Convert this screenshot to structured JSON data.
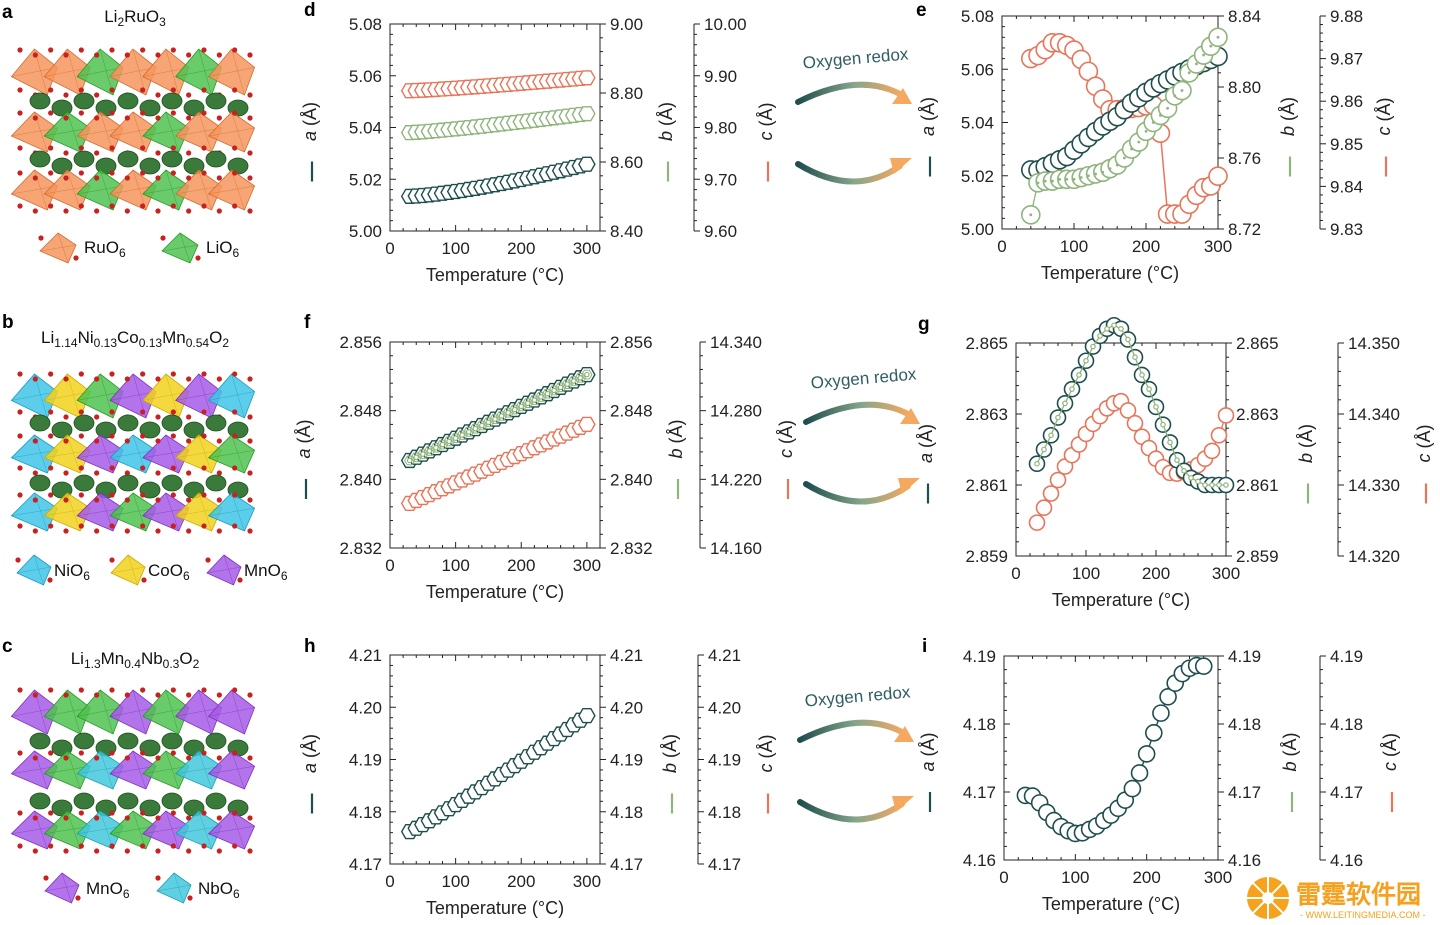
{
  "colors": {
    "a": "#1f4e4e",
    "b": "#8fb47c",
    "c": "#e8755a",
    "ru": "#f6955c",
    "li": "#4fc24f",
    "ni": "#3fc4e6",
    "co": "#f2d21c",
    "mn": "#a65ae6",
    "nb": "#43c8dc",
    "sphere": "#3a7a3a",
    "oxygen": "#c92020"
  },
  "panel_letters": {
    "a": "a",
    "b": "b",
    "c": "c",
    "d": "d",
    "e": "e",
    "f": "f",
    "g": "g",
    "h": "h",
    "i": "i"
  },
  "structures": {
    "a": {
      "formula": {
        "parts": [
          {
            "t": "Li"
          },
          {
            "t": "2",
            "sub": true
          },
          {
            "t": "RuO"
          },
          {
            "t": "3",
            "sub": true
          }
        ]
      },
      "legend": [
        {
          "name": "RuO",
          "sub": "6",
          "color_key": "ru"
        },
        {
          "name": "LiO",
          "sub": "6",
          "color_key": "li"
        }
      ]
    },
    "b": {
      "formula": {
        "parts": [
          {
            "t": "Li"
          },
          {
            "t": "1.14",
            "sub": true
          },
          {
            "t": "Ni"
          },
          {
            "t": "0.13",
            "sub": true
          },
          {
            "t": "Co"
          },
          {
            "t": "0.13",
            "sub": true
          },
          {
            "t": "Mn"
          },
          {
            "t": "0.54",
            "sub": true
          },
          {
            "t": "O"
          },
          {
            "t": "2",
            "sub": true
          }
        ]
      },
      "legend": [
        {
          "name": "NiO",
          "sub": "6",
          "color_key": "ni"
        },
        {
          "name": "CoO",
          "sub": "6",
          "color_key": "co"
        },
        {
          "name": "MnO",
          "sub": "6",
          "color_key": "mn"
        }
      ]
    },
    "c": {
      "formula": {
        "parts": [
          {
            "t": "Li"
          },
          {
            "t": "1.3",
            "sub": true
          },
          {
            "t": "Mn"
          },
          {
            "t": "0.4",
            "sub": true
          },
          {
            "t": "Nb"
          },
          {
            "t": "0.3",
            "sub": true
          },
          {
            "t": "O"
          },
          {
            "t": "2",
            "sub": true
          }
        ]
      },
      "legend": [
        {
          "name": "MnO",
          "sub": "6",
          "color_key": "mn"
        },
        {
          "name": "NbO",
          "sub": "6",
          "color_key": "nb"
        }
      ]
    }
  },
  "redox_label": "Oxygen redox",
  "axis_titles": {
    "x": "Temperature (°C)",
    "a_var": "a",
    "b_var": "b",
    "c_var": "c",
    "unit": " (Å)"
  },
  "watermark": {
    "title": "雷霆软件园",
    "url": "- WWW.LEITINGMEDIA.COM -"
  },
  "chart_data": [
    {
      "panel": "d",
      "type": "scatter",
      "marker": "hexagon",
      "xlabel": "Temperature (°C)",
      "xlim": [
        0,
        320
      ],
      "xticks": [
        0,
        100,
        200,
        300
      ],
      "axes": {
        "a": {
          "ylim": [
            5.0,
            5.08
          ],
          "ticks": [
            "5.00",
            "5.02",
            "5.04",
            "5.06",
            "5.08"
          ]
        },
        "b": {
          "ylim": [
            8.4,
            9.0
          ],
          "ticks": [
            "8.40",
            "8.60",
            "8.80",
            "9.00"
          ]
        },
        "c": {
          "ylim": [
            9.6,
            10.0
          ],
          "ticks": [
            "9.60",
            "9.70",
            "9.80",
            "9.90",
            "10.00"
          ]
        }
      },
      "series": [
        {
          "name": "a",
          "axis": "a",
          "x_start": 30,
          "x_end": 300,
          "n": 28,
          "y_start": 5.0134,
          "y_end": 5.0258,
          "curve": 1.4
        },
        {
          "name": "b",
          "axis": "b",
          "x_start": 30,
          "x_end": 300,
          "n": 28,
          "y_start": 8.685,
          "y_end": 8.74,
          "curve": 1.2
        },
        {
          "name": "c",
          "axis": "c",
          "x_start": 30,
          "x_end": 300,
          "n": 28,
          "y_start": 9.871,
          "y_end": 9.896,
          "curve": 1.2
        }
      ]
    },
    {
      "panel": "e",
      "type": "scatter",
      "marker": "circle",
      "xlabel": "Temperature (°C)",
      "xlim": [
        0,
        300
      ],
      "xticks": [
        0,
        100,
        200,
        300
      ],
      "axes": {
        "a": {
          "ylim": [
            5.0,
            5.08
          ],
          "ticks": [
            "5.00",
            "5.02",
            "5.04",
            "5.06",
            "5.08"
          ]
        },
        "b": {
          "ylim": [
            8.72,
            8.84
          ],
          "ticks": [
            "8.72",
            "8.76",
            "8.80",
            "8.84"
          ]
        },
        "c": {
          "ylim": [
            9.83,
            9.88
          ],
          "ticks": [
            "9.83",
            "9.84",
            "9.85",
            "9.86",
            "9.87",
            "9.88"
          ]
        }
      },
      "series": [
        {
          "name": "a",
          "axis": "a",
          "x": [
            40,
            50,
            60,
            70,
            80,
            90,
            100,
            110,
            120,
            130,
            140,
            150,
            160,
            170,
            180,
            190,
            200,
            210,
            220,
            230,
            240,
            250,
            260,
            270,
            280,
            290,
            300
          ],
          "y": [
            5.0222,
            5.0222,
            5.0234,
            5.0247,
            5.026,
            5.0272,
            5.0296,
            5.032,
            5.0344,
            5.0366,
            5.0387,
            5.0405,
            5.0422,
            5.0448,
            5.0473,
            5.0493,
            5.0513,
            5.053,
            5.0546,
            5.056,
            5.0575,
            5.0588,
            5.0601,
            5.0613,
            5.0625,
            5.0637,
            5.0648
          ]
        },
        {
          "name": "b",
          "axis": "b",
          "x": [
            40,
            50,
            60,
            70,
            80,
            90,
            100,
            110,
            120,
            130,
            140,
            150,
            160,
            170,
            180,
            190,
            200,
            210,
            220,
            230,
            240,
            250,
            260,
            270,
            280,
            290,
            300
          ],
          "y": [
            8.728,
            8.746,
            8.747,
            8.747,
            8.748,
            8.748,
            8.748,
            8.749,
            8.75,
            8.751,
            8.752,
            8.754,
            8.756,
            8.76,
            8.765,
            8.769,
            8.775,
            8.78,
            8.784,
            8.788,
            8.795,
            8.798,
            8.808,
            8.813,
            8.818,
            8.823,
            8.828
          ]
        },
        {
          "name": "c",
          "axis": "c",
          "x": [
            40,
            50,
            60,
            70,
            80,
            90,
            100,
            110,
            120,
            130,
            140,
            150,
            160,
            170,
            180,
            190,
            200,
            210,
            220,
            230,
            240,
            250,
            260,
            270,
            280,
            290,
            300
          ],
          "y": [
            9.87,
            9.8707,
            9.8721,
            9.8737,
            9.8737,
            9.8731,
            9.872,
            9.8698,
            9.867,
            9.8635,
            9.8605,
            9.858,
            9.858,
            9.8583,
            9.8583,
            9.8585,
            9.8589,
            9.8591,
            9.8525,
            9.8335,
            9.8335,
            9.8335,
            9.8358,
            9.8379,
            9.8397,
            9.8401,
            9.8424
          ]
        }
      ]
    },
    {
      "panel": "f",
      "type": "scatter",
      "marker": "hexagon",
      "xlabel": "Temperature (°C)",
      "xlim": [
        0,
        320
      ],
      "xticks": [
        0,
        100,
        200,
        300
      ],
      "axes": {
        "a": {
          "ylim": [
            2.832,
            2.856
          ],
          "ticks": [
            "2.832",
            "2.840",
            "2.848",
            "2.856"
          ]
        },
        "b": {
          "ylim": [
            2.832,
            2.856
          ],
          "ticks": [
            "2.832",
            "2.840",
            "2.848",
            "2.856"
          ]
        },
        "c": {
          "ylim": [
            14.16,
            14.34
          ],
          "ticks": [
            "14.160",
            "14.220",
            "14.280",
            "14.340"
          ]
        }
      },
      "series": [
        {
          "name": "a",
          "axis": "a",
          "x_start": 30,
          "x_end": 300,
          "n": 28,
          "y_start": 2.8422,
          "y_end": 2.8522,
          "curve": 1.0
        },
        {
          "name": "b",
          "axis": "b",
          "x_start": 30,
          "x_end": 300,
          "n": 28,
          "y_start": 2.8422,
          "y_end": 2.8522,
          "curve": 1.0,
          "inner": true
        },
        {
          "name": "c",
          "axis": "c",
          "x_start": 30,
          "x_end": 300,
          "n": 28,
          "y_start": 14.199,
          "y_end": 14.268,
          "curve": 1.0
        }
      ]
    },
    {
      "panel": "g",
      "type": "scatter",
      "marker": "circle",
      "xlabel": "Temperature (°C)",
      "xlim": [
        0,
        300
      ],
      "xticks": [
        0,
        100,
        200,
        300
      ],
      "axes": {
        "a": {
          "ylim": [
            2.859,
            2.865
          ],
          "ticks": [
            "2.859",
            "2.861",
            "2.863",
            "2.865"
          ]
        },
        "b": {
          "ylim": [
            2.859,
            2.865
          ],
          "ticks": [
            "2.859",
            "2.861",
            "2.863",
            "2.865"
          ]
        },
        "c": {
          "ylim": [
            14.32,
            14.35
          ],
          "ticks": [
            "14.320",
            "14.330",
            "14.340",
            "14.350"
          ]
        }
      },
      "series": [
        {
          "name": "a",
          "axis": "a",
          "x": [
            30,
            40,
            50,
            60,
            70,
            80,
            90,
            100,
            110,
            120,
            130,
            140,
            150,
            160,
            170,
            180,
            190,
            200,
            210,
            220,
            230,
            240,
            250,
            260,
            270,
            280,
            290,
            300
          ],
          "y": [
            2.8616,
            2.862,
            2.8624,
            2.8629,
            2.8633,
            2.8637,
            2.8641,
            2.8645,
            2.8649,
            2.8652,
            2.8654,
            2.8655,
            2.8654,
            2.8651,
            2.8646,
            2.8641,
            2.8637,
            2.8632,
            2.8627,
            2.8622,
            2.8617,
            2.8614,
            2.8612,
            2.8611,
            2.861,
            2.861,
            2.861,
            2.861
          ]
        },
        {
          "name": "b",
          "axis": "b",
          "x": [
            30,
            40,
            50,
            60,
            70,
            80,
            90,
            100,
            110,
            120,
            130,
            140,
            150,
            160,
            170,
            180,
            190,
            200,
            210,
            220,
            230,
            240,
            250,
            260,
            270,
            280,
            290,
            300
          ],
          "y": [
            2.8616,
            2.862,
            2.8624,
            2.8629,
            2.8633,
            2.8637,
            2.8641,
            2.8645,
            2.8649,
            2.8652,
            2.8654,
            2.8655,
            2.8654,
            2.8651,
            2.8646,
            2.8641,
            2.8637,
            2.8632,
            2.8627,
            2.8622,
            2.8617,
            2.8614,
            2.8612,
            2.8611,
            2.861,
            2.861,
            2.861,
            2.861
          ],
          "inner": true
        },
        {
          "name": "c",
          "axis": "c",
          "x": [
            30,
            40,
            50,
            60,
            70,
            80,
            90,
            100,
            110,
            120,
            130,
            140,
            150,
            160,
            170,
            180,
            190,
            200,
            210,
            220,
            230,
            240,
            250,
            260,
            270,
            280,
            290,
            300
          ],
          "y": [
            14.3247,
            14.3268,
            14.3288,
            14.3307,
            14.3326,
            14.3342,
            14.3357,
            14.3372,
            14.3386,
            14.3397,
            14.3408,
            14.3415,
            14.3418,
            14.3405,
            14.3387,
            14.3368,
            14.3352,
            14.3337,
            14.3325,
            14.3317,
            14.3316,
            14.3318,
            14.3322,
            14.3328,
            14.3337,
            14.3348,
            14.337,
            14.3398
          ]
        }
      ]
    },
    {
      "panel": "h",
      "type": "scatter",
      "marker": "hexagon",
      "xlabel": "Temperature (°C)",
      "xlim": [
        0,
        320
      ],
      "xticks": [
        0,
        100,
        200,
        300
      ],
      "axes": {
        "a": {
          "ylim": [
            4.17,
            4.21
          ],
          "ticks": [
            "4.17",
            "4.18",
            "4.19",
            "4.20",
            "4.21"
          ]
        },
        "b": {
          "ylim": [
            4.17,
            4.21
          ],
          "ticks": [
            "4.17",
            "4.18",
            "4.19",
            "4.20",
            "4.21"
          ]
        },
        "c": {
          "ylim": [
            4.17,
            4.21
          ],
          "ticks": [
            "4.17",
            "4.18",
            "4.19",
            "4.20",
            "4.21"
          ]
        }
      },
      "series": [
        {
          "name": "a",
          "axis": "a",
          "x_start": 30,
          "x_end": 300,
          "n": 28,
          "y_start": 4.1762,
          "y_end": 4.1984,
          "curve": 1.08
        },
        {
          "name": "c",
          "axis": "c",
          "x_start": 30,
          "x_end": 300,
          "n": 28,
          "y_start": 4.1762,
          "y_end": 4.1984,
          "curve": 1.08,
          "inner": true
        }
      ]
    },
    {
      "panel": "i",
      "type": "scatter",
      "marker": "circle",
      "xlabel": "Temperature (°C)",
      "xlim": [
        0,
        300
      ],
      "xticks": [
        0,
        100,
        200,
        300
      ],
      "axes": {
        "a": {
          "ylim": [
            4.16,
            4.19
          ],
          "ticks": [
            "4.16",
            "4.17",
            "4.18",
            "4.19"
          ]
        },
        "b": {
          "ylim": [
            4.16,
            4.19
          ],
          "ticks": [
            "4.16",
            "4.17",
            "4.18",
            "4.19"
          ]
        },
        "c": {
          "ylim": [
            4.16,
            4.19
          ],
          "ticks": [
            "4.16",
            "4.17",
            "4.18",
            "4.19"
          ]
        }
      },
      "series": [
        {
          "name": "a",
          "axis": "a",
          "x": [
            30,
            40,
            50,
            60,
            70,
            80,
            90,
            100,
            110,
            120,
            130,
            140,
            150,
            160,
            170,
            180,
            190,
            200,
            210,
            220,
            230,
            240,
            250,
            260,
            270,
            280
          ],
          "y": [
            4.1695,
            4.1694,
            4.1684,
            4.167,
            4.1658,
            4.1649,
            4.1643,
            4.1639,
            4.164,
            4.1645,
            4.165,
            4.1658,
            4.1666,
            4.1676,
            4.1688,
            4.1705,
            4.1728,
            4.1756,
            4.1787,
            4.1816,
            4.184,
            4.186,
            4.1874,
            4.1882,
            4.1886,
            4.1885
          ]
        },
        {
          "name": "c",
          "axis": "c",
          "x": [
            30,
            40,
            50,
            60,
            70,
            80,
            90,
            100,
            110,
            120,
            130,
            140,
            150,
            160,
            170,
            180,
            190,
            200,
            210,
            220,
            230,
            240,
            250,
            260,
            270,
            280
          ],
          "y": [
            4.1695,
            4.1694,
            4.1684,
            4.167,
            4.1658,
            4.1649,
            4.1643,
            4.1639,
            4.164,
            4.1645,
            4.165,
            4.1658,
            4.1666,
            4.1676,
            4.1688,
            4.1705,
            4.1728,
            4.1756,
            4.1787,
            4.1816,
            4.184,
            4.186,
            4.1874,
            4.1882,
            4.1886,
            4.1885
          ],
          "inner": true
        }
      ]
    }
  ]
}
